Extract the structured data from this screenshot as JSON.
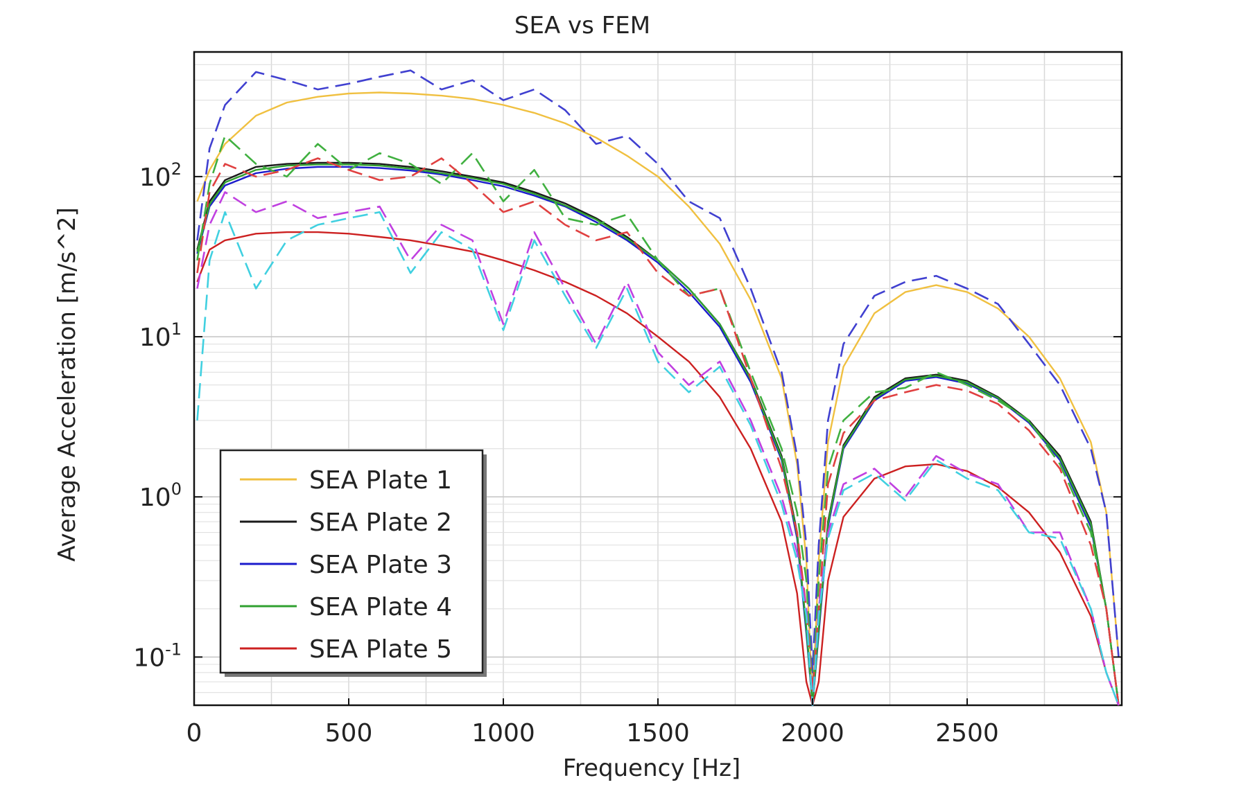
{
  "chart_data": {
    "type": "line",
    "title": "SEA vs FEM",
    "xlabel": "Frequency [Hz]",
    "ylabel": "Average Acceleration [m/s^2]",
    "xlim": [
      0,
      3000
    ],
    "ylim": [
      0.05,
      600
    ],
    "yscale": "log",
    "grid": true,
    "legend_position": "bottom-left",
    "x_ticks": [
      {
        "value": 0,
        "label": "0"
      },
      {
        "value": 500,
        "label": "500"
      },
      {
        "value": 1000,
        "label": "1000"
      },
      {
        "value": 1500,
        "label": "1500"
      },
      {
        "value": 2000,
        "label": "2000"
      },
      {
        "value": 2500,
        "label": "2500"
      }
    ],
    "y_ticks": [
      {
        "value": 0.1,
        "base": "10",
        "exp": "-1"
      },
      {
        "value": 1,
        "base": "10",
        "exp": "0"
      },
      {
        "value": 10,
        "base": "10",
        "exp": "1"
      },
      {
        "value": 100,
        "base": "10",
        "exp": "2"
      }
    ],
    "x": [
      10,
      50,
      100,
      200,
      300,
      400,
      500,
      600,
      700,
      800,
      900,
      1000,
      1100,
      1200,
      1300,
      1400,
      1500,
      1600,
      1700,
      1800,
      1900,
      1950,
      1980,
      2000,
      2020,
      2050,
      2100,
      2200,
      2300,
      2400,
      2500,
      2600,
      2700,
      2800,
      2900,
      2950,
      2990
    ],
    "series": [
      {
        "name": "SEA Plate 1",
        "color": "#f0c040",
        "style": "solid",
        "values": [
          70,
          110,
          160,
          240,
          290,
          315,
          330,
          335,
          330,
          320,
          305,
          280,
          250,
          215,
          175,
          135,
          100,
          65,
          38,
          17,
          5.5,
          1.6,
          0.4,
          0.05,
          0.4,
          2.2,
          6.5,
          14,
          19,
          21,
          19,
          15,
          10,
          5.5,
          2.2,
          0.8,
          0.1
        ]
      },
      {
        "name": "SEA Plate 2",
        "color": "#1a1a1a",
        "style": "solid",
        "values": [
          35,
          70,
          95,
          115,
          120,
          122,
          122,
          120,
          115,
          108,
          100,
          92,
          80,
          68,
          55,
          42,
          30,
          20,
          12,
          5.5,
          1.8,
          0.6,
          0.15,
          0.05,
          0.15,
          0.7,
          2.1,
          4.2,
          5.5,
          5.8,
          5.3,
          4.2,
          3,
          1.8,
          0.7,
          0.2,
          0.05
        ]
      },
      {
        "name": "SEA Plate 3",
        "color": "#1a1acc",
        "style": "solid",
        "values": [
          33,
          65,
          88,
          105,
          112,
          115,
          115,
          113,
          109,
          103,
          95,
          87,
          76,
          65,
          52,
          40,
          29,
          19,
          11.5,
          5.2,
          1.7,
          0.55,
          0.14,
          0.05,
          0.14,
          0.65,
          2,
          4,
          5.3,
          5.6,
          5.1,
          4.1,
          2.9,
          1.7,
          0.65,
          0.2,
          0.05
        ]
      },
      {
        "name": "SEA Plate 4",
        "color": "#30a030",
        "style": "solid",
        "values": [
          34,
          67,
          92,
          110,
          117,
          119,
          119,
          117,
          112,
          105,
          98,
          90,
          78,
          66,
          54,
          41,
          30,
          20,
          12,
          5.4,
          1.75,
          0.58,
          0.15,
          0.05,
          0.15,
          0.68,
          2.05,
          4.1,
          5.4,
          5.7,
          5.2,
          4.15,
          2.95,
          1.75,
          0.68,
          0.2,
          0.05
        ]
      },
      {
        "name": "SEA Plate 5",
        "color": "#cc2020",
        "style": "solid",
        "values": [
          22,
          35,
          40,
          44,
          45,
          45,
          44,
          42,
          40,
          37,
          34,
          30,
          26,
          22,
          18,
          14,
          10,
          7,
          4.2,
          2,
          0.7,
          0.25,
          0.07,
          0.05,
          0.07,
          0.3,
          0.75,
          1.3,
          1.55,
          1.6,
          1.45,
          1.15,
          0.8,
          0.45,
          0.18,
          0.08,
          0.05
        ]
      },
      {
        "name": "",
        "color": "#4040d0",
        "style": "dashed",
        "values": [
          40,
          150,
          280,
          450,
          400,
          350,
          380,
          420,
          460,
          350,
          400,
          300,
          350,
          260,
          160,
          180,
          120,
          70,
          55,
          20,
          6,
          1.8,
          0.5,
          0.08,
          0.5,
          3,
          9,
          18,
          22,
          24,
          20,
          16,
          9,
          5,
          2,
          0.8,
          0.1
        ]
      },
      {
        "name": "",
        "color": "#40b040",
        "style": "dashed",
        "values": [
          30,
          90,
          180,
          120,
          100,
          160,
          110,
          140,
          120,
          90,
          140,
          70,
          110,
          55,
          50,
          58,
          30,
          18,
          20,
          6,
          2,
          0.8,
          0.3,
          0.06,
          0.3,
          1.5,
          3,
          4.5,
          4.8,
          6,
          5,
          4,
          3,
          1.6,
          0.6,
          0.2,
          0.05
        ]
      },
      {
        "name": "",
        "color": "#e04040",
        "style": "dashed",
        "values": [
          25,
          80,
          120,
          100,
          110,
          130,
          110,
          95,
          100,
          130,
          90,
          60,
          70,
          50,
          40,
          45,
          25,
          18,
          20,
          5.5,
          1.5,
          0.6,
          0.2,
          0.06,
          0.2,
          1.2,
          2.5,
          4,
          4.5,
          5,
          4.6,
          3.8,
          2.6,
          1.5,
          0.5,
          0.2,
          0.05
        ]
      },
      {
        "name": "",
        "color": "#c040e0",
        "style": "dashed",
        "values": [
          20,
          50,
          80,
          60,
          70,
          55,
          60,
          65,
          30,
          50,
          40,
          12,
          45,
          20,
          9,
          22,
          8,
          5,
          7,
          3,
          1,
          0.45,
          0.2,
          0.05,
          0.2,
          0.6,
          1.2,
          1.5,
          1.0,
          1.8,
          1.4,
          1.2,
          0.6,
          0.6,
          0.2,
          0.08,
          0.05
        ]
      },
      {
        "name": "",
        "color": "#40d0e0",
        "style": "dashed",
        "values": [
          3,
          30,
          60,
          20,
          40,
          50,
          55,
          60,
          25,
          45,
          35,
          11,
          40,
          18,
          8.5,
          20,
          7,
          4.5,
          6.5,
          2.8,
          0.9,
          0.4,
          0.18,
          0.05,
          0.18,
          0.55,
          1.1,
          1.4,
          0.95,
          1.7,
          1.3,
          1.1,
          0.6,
          0.55,
          0.2,
          0.08,
          0.05
        ]
      }
    ]
  }
}
